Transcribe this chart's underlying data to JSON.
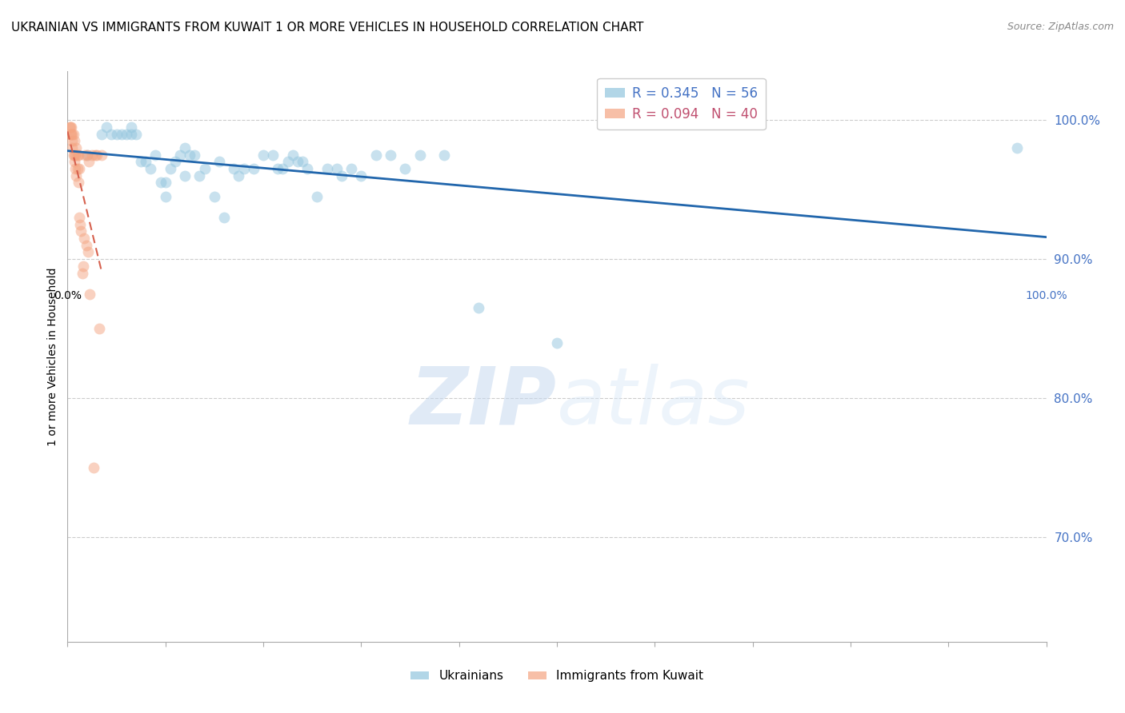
{
  "title": "UKRAINIAN VS IMMIGRANTS FROM KUWAIT 1 OR MORE VEHICLES IN HOUSEHOLD CORRELATION CHART",
  "source": "Source: ZipAtlas.com",
  "ylabel": "1 or more Vehicles in Household",
  "ytick_values": [
    0.7,
    0.8,
    0.9,
    1.0
  ],
  "ytick_labels": [
    "70.0%",
    "80.0%",
    "90.0%",
    "100.0%"
  ],
  "xlim": [
    0.0,
    1.0
  ],
  "ylim": [
    0.625,
    1.035
  ],
  "blue_color": "#92c5de",
  "pink_color": "#f4a582",
  "trend_blue_color": "#2166ac",
  "trend_pink_color": "#d6604d",
  "watermark_zip": "ZIP",
  "watermark_atlas": "atlas",
  "blue_x": [
    0.02,
    0.035,
    0.04,
    0.045,
    0.05,
    0.055,
    0.06,
    0.065,
    0.065,
    0.07,
    0.075,
    0.08,
    0.085,
    0.09,
    0.095,
    0.1,
    0.1,
    0.105,
    0.11,
    0.115,
    0.12,
    0.12,
    0.125,
    0.13,
    0.135,
    0.14,
    0.15,
    0.155,
    0.16,
    0.17,
    0.175,
    0.18,
    0.19,
    0.2,
    0.21,
    0.215,
    0.22,
    0.225,
    0.23,
    0.235,
    0.24,
    0.245,
    0.255,
    0.265,
    0.275,
    0.28,
    0.29,
    0.3,
    0.315,
    0.33,
    0.345,
    0.36,
    0.385,
    0.42,
    0.5,
    0.97
  ],
  "blue_y": [
    0.975,
    0.99,
    0.995,
    0.99,
    0.99,
    0.99,
    0.99,
    0.995,
    0.99,
    0.99,
    0.97,
    0.97,
    0.965,
    0.975,
    0.955,
    0.955,
    0.945,
    0.965,
    0.97,
    0.975,
    0.98,
    0.96,
    0.975,
    0.975,
    0.96,
    0.965,
    0.945,
    0.97,
    0.93,
    0.965,
    0.96,
    0.965,
    0.965,
    0.975,
    0.975,
    0.965,
    0.965,
    0.97,
    0.975,
    0.97,
    0.97,
    0.965,
    0.945,
    0.965,
    0.965,
    0.96,
    0.965,
    0.96,
    0.975,
    0.975,
    0.965,
    0.975,
    0.975,
    0.865,
    0.84,
    0.98
  ],
  "pink_x": [
    0.002,
    0.003,
    0.003,
    0.004,
    0.004,
    0.005,
    0.005,
    0.005,
    0.006,
    0.006,
    0.007,
    0.007,
    0.007,
    0.008,
    0.008,
    0.009,
    0.009,
    0.01,
    0.01,
    0.011,
    0.011,
    0.012,
    0.012,
    0.013,
    0.014,
    0.015,
    0.016,
    0.017,
    0.018,
    0.019,
    0.02,
    0.021,
    0.022,
    0.023,
    0.025,
    0.027,
    0.028,
    0.03,
    0.032,
    0.035
  ],
  "pink_y": [
    0.995,
    0.995,
    0.99,
    0.995,
    0.99,
    0.99,
    0.985,
    0.98,
    0.99,
    0.975,
    0.985,
    0.975,
    0.97,
    0.975,
    0.965,
    0.98,
    0.96,
    0.975,
    0.965,
    0.975,
    0.955,
    0.965,
    0.93,
    0.925,
    0.92,
    0.89,
    0.895,
    0.915,
    0.975,
    0.91,
    0.975,
    0.905,
    0.97,
    0.875,
    0.975,
    0.75,
    0.975,
    0.975,
    0.85,
    0.975
  ],
  "marker_size": 100,
  "alpha": 0.5
}
